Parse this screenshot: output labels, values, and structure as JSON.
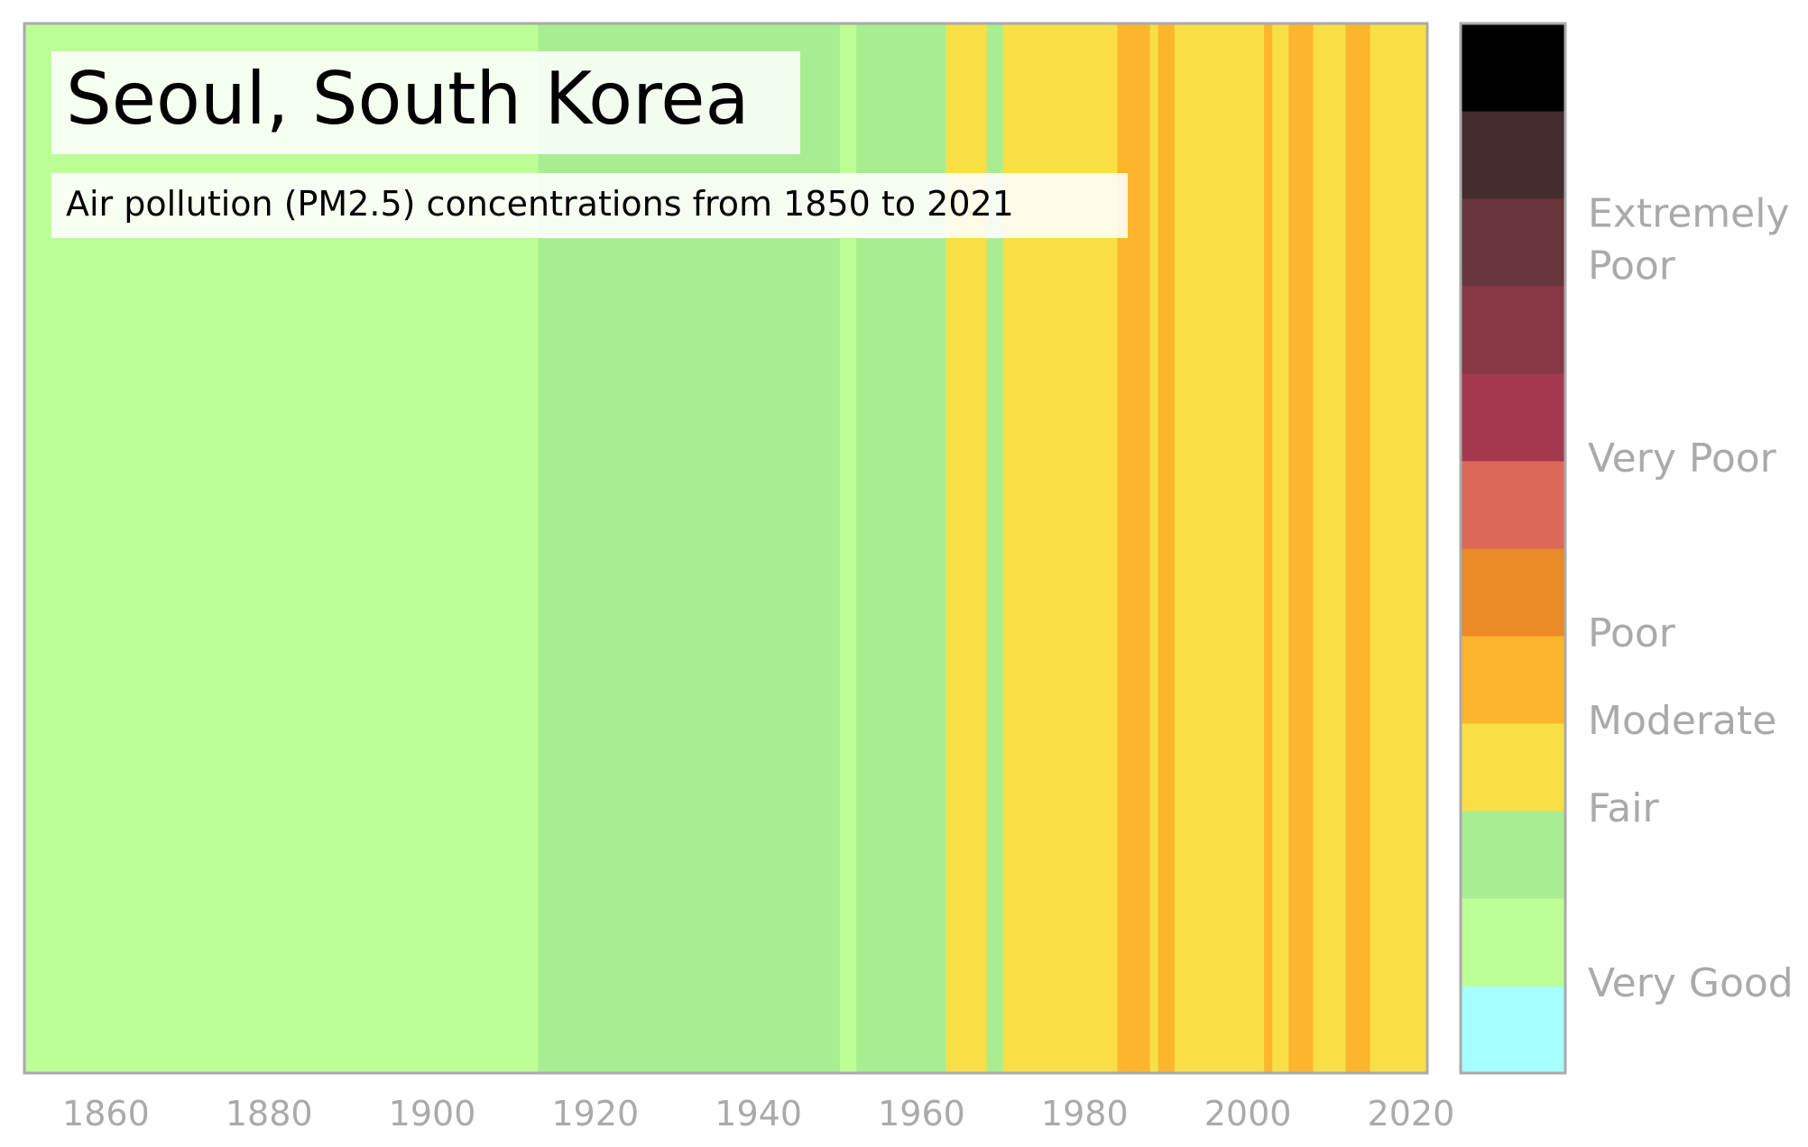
{
  "chart_data": {
    "type": "heatmap",
    "title": "Seoul, South Korea",
    "subtitle": "Air pollution (PM2.5) concentrations from 1850 to 2021",
    "xlabel": "",
    "ylabel": "",
    "xlim": [
      1850,
      2022
    ],
    "x_ticks": [
      1860,
      1880,
      1900,
      1920,
      1940,
      1960,
      1980,
      2000,
      2020
    ],
    "grid": false,
    "legend_position": "right",
    "levels": [
      {
        "index": 0,
        "color": "#a5fffe"
      },
      {
        "index": 1,
        "color": "#bcff96"
      },
      {
        "index": 2,
        "color": "#a9ed91"
      },
      {
        "index": 3,
        "color": "#f9df45"
      },
      {
        "index": 4,
        "color": "#fdb52e"
      },
      {
        "index": 5,
        "color": "#e98a27"
      },
      {
        "index": 6,
        "color": "#dc6859"
      },
      {
        "index": 7,
        "color": "#a4384f"
      },
      {
        "index": 8,
        "color": "#883745"
      },
      {
        "index": 9,
        "color": "#68353a"
      },
      {
        "index": 10,
        "color": "#452c2f"
      },
      {
        "index": 11,
        "color": "#000000"
      }
    ],
    "colorbar_labels": [
      {
        "text": [
          "Extremely",
          "Poor"
        ],
        "level": 9.5
      },
      {
        "text": [
          "Very Poor"
        ],
        "level": 7.0
      },
      {
        "text": [
          "Poor"
        ],
        "level": 5.0
      },
      {
        "text": [
          "Moderate"
        ],
        "level": 4.0
      },
      {
        "text": [
          "Fair"
        ],
        "level": 3.0
      },
      {
        "text": [
          "Very Good"
        ],
        "level": 1.0
      }
    ],
    "segments": [
      {
        "start": 1850,
        "end": 1913,
        "level": 1
      },
      {
        "start": 1913,
        "end": 1950,
        "level": 2
      },
      {
        "start": 1950,
        "end": 1952,
        "level": 1
      },
      {
        "start": 1952,
        "end": 1963,
        "level": 2
      },
      {
        "start": 1963,
        "end": 1968,
        "level": 3
      },
      {
        "start": 1968,
        "end": 1970,
        "level": 2
      },
      {
        "start": 1970,
        "end": 1984,
        "level": 3
      },
      {
        "start": 1984,
        "end": 1988,
        "level": 4
      },
      {
        "start": 1988,
        "end": 1989,
        "level": 3
      },
      {
        "start": 1989,
        "end": 1991,
        "level": 4
      },
      {
        "start": 1991,
        "end": 2002,
        "level": 3
      },
      {
        "start": 2002,
        "end": 2003,
        "level": 4
      },
      {
        "start": 2003,
        "end": 2005,
        "level": 3
      },
      {
        "start": 2005,
        "end": 2008,
        "level": 4
      },
      {
        "start": 2008,
        "end": 2012,
        "level": 3
      },
      {
        "start": 2012,
        "end": 2015,
        "level": 4
      },
      {
        "start": 2015,
        "end": 2022,
        "level": 3
      }
    ]
  }
}
